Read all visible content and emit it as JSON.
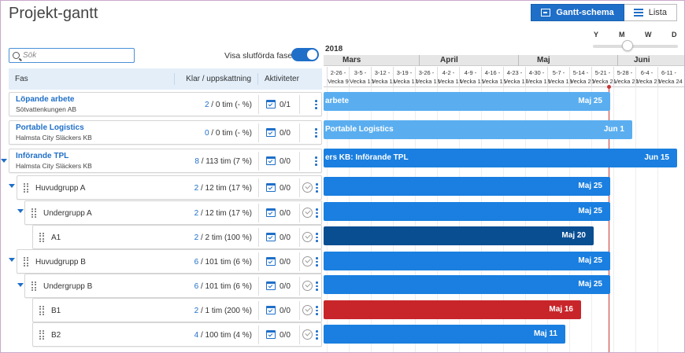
{
  "page": {
    "title": "Projekt-gantt"
  },
  "view_switch": {
    "gantt_label": "Gantt-schema",
    "list_label": "Lista"
  },
  "zoom": {
    "labels": [
      "Y",
      "M",
      "W",
      "D"
    ]
  },
  "search": {
    "placeholder": "Sök",
    "value": ""
  },
  "completed_toggle": {
    "label": "Visa slutförda faser",
    "on": true
  },
  "table": {
    "headers": {
      "phase": "Fas",
      "done": "Klar / uppskattning",
      "activities": "Aktiviteter"
    },
    "rows": [
      {
        "name": "Löpande arbete",
        "sub": "Sötvattenkungen AB",
        "done": "2",
        "rest": " / 0 tim",
        "pct": " (- %)",
        "act": "0/1"
      },
      {
        "name": "Portable Logistics",
        "sub": "Halmsta City Släckers KB",
        "done": "0",
        "rest": " / 0 tim",
        "pct": " (- %)",
        "act": "0/0"
      },
      {
        "name": "Införande TPL",
        "sub": "Halmsta City Släckers KB",
        "done": "8",
        "rest": " / 113 tim",
        "pct": " (7 %)",
        "act": "0/0"
      },
      {
        "name": "Huvudgrupp A",
        "done": "2",
        "rest": " / 12 tim",
        "pct": " (17 %)",
        "act": "0/0"
      },
      {
        "name": "Undergrupp A",
        "done": "2",
        "rest": " / 12 tim",
        "pct": " (17 %)",
        "act": "0/0"
      },
      {
        "name": "A1",
        "done": "2",
        "rest": " / 2 tim",
        "pct": " (100 %)",
        "act": "0/0"
      },
      {
        "name": "Huvudgrupp B",
        "done": "6",
        "rest": " / 101 tim",
        "pct": " (6 %)",
        "act": "0/0"
      },
      {
        "name": "Undergrupp B",
        "done": "6",
        "rest": " / 101 tim",
        "pct": " (6 %)",
        "act": "0/0"
      },
      {
        "name": "B1",
        "done": "2",
        "rest": " / 1 tim",
        "pct": " (200 %)",
        "act": "0/0"
      },
      {
        "name": "B2",
        "done": "4",
        "rest": " / 100 tim",
        "pct": " (4 %)",
        "act": "0/0"
      }
    ]
  },
  "gantt": {
    "year": "2018",
    "months": [
      "Mars",
      "April",
      "Maj",
      "Juni"
    ],
    "weeks": [
      {
        "date": "2-26 -",
        "week": "Vecka 9"
      },
      {
        "date": "3-5 -",
        "week": "Vecka 10"
      },
      {
        "date": "3-12 -",
        "week": "Vecka 11"
      },
      {
        "date": "3-19 -",
        "week": "Vecka 12"
      },
      {
        "date": "3-26 -",
        "week": "Vecka 13"
      },
      {
        "date": "4-2 -",
        "week": "Vecka 14"
      },
      {
        "date": "4-9 -",
        "week": "Vecka 15"
      },
      {
        "date": "4-16 -",
        "week": "Vecka 16"
      },
      {
        "date": "4-23 -",
        "week": "Vecka 17"
      },
      {
        "date": "4-30 -",
        "week": "Vecka 18"
      },
      {
        "date": "5-7 -",
        "week": "Vecka 19"
      },
      {
        "date": "5-14 -",
        "week": "Vecka 20"
      },
      {
        "date": "5-21 -",
        "week": "Vecka 21"
      },
      {
        "date": "5-28 -",
        "week": "Vecka 22"
      },
      {
        "date": "6-4 -",
        "week": "Vecka 23"
      },
      {
        "date": "6-11 -",
        "week": "Vecka 24"
      }
    ],
    "bars": [
      {
        "label": "arbete",
        "end": "Maj 25",
        "color": "#5aaef0"
      },
      {
        "label": "Portable Logistics",
        "end": "Jun 1",
        "color": "#5aaef0"
      },
      {
        "label": "ers KB: Införande TPL",
        "end": "Jun 15",
        "color": "#1a7fe0"
      },
      {
        "label": "",
        "end": "Maj 25",
        "color": "#1a7fe0"
      },
      {
        "label": "",
        "end": "Maj 25",
        "color": "#1a7fe0"
      },
      {
        "label": "",
        "end": "Maj 20",
        "color": "#0a4e92"
      },
      {
        "label": "",
        "end": "Maj 25",
        "color": "#1a7fe0"
      },
      {
        "label": "",
        "end": "Maj 25",
        "color": "#1a7fe0"
      },
      {
        "label": "",
        "end": "Maj 16",
        "color": "#c8252b"
      },
      {
        "label": "",
        "end": "Maj 11",
        "color": "#1a7fe0"
      }
    ]
  }
}
